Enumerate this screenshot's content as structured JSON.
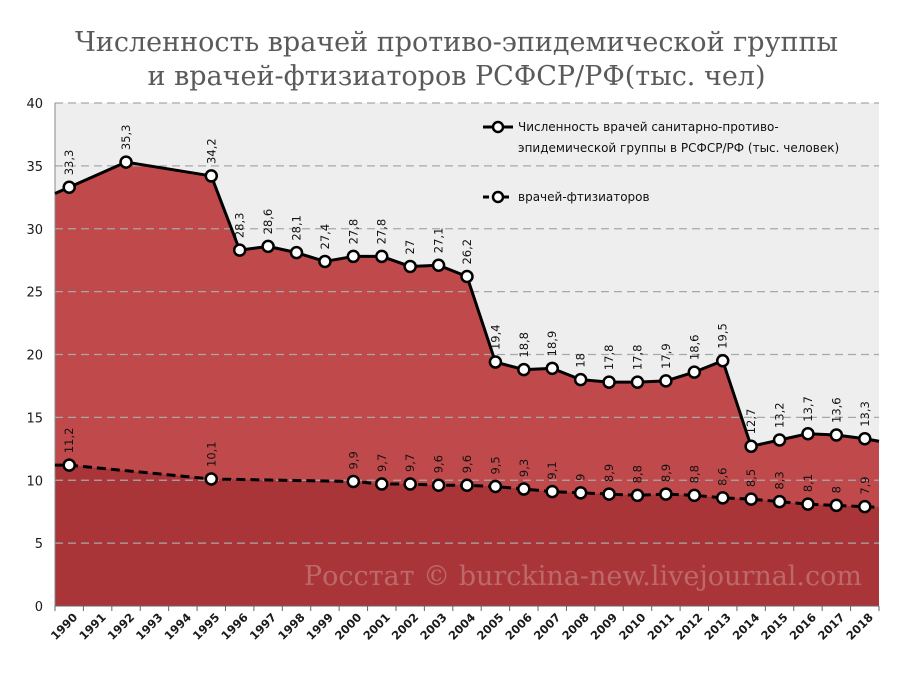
{
  "chart_data": {
    "type": "area",
    "title_lines": [
      "Численность врачей противо-эпидемической группы",
      "и врачей-фтизиаторов РСФСР/РФ(тыс. чел)"
    ],
    "categories": [
      "1990",
      "1991",
      "1992",
      "1993",
      "1994",
      "1995",
      "1996",
      "1997",
      "1998",
      "1999",
      "2000",
      "2001",
      "2002",
      "2003",
      "2004",
      "2005",
      "2006",
      "2007",
      "2008",
      "2009",
      "2010",
      "2011",
      "2012",
      "2013",
      "2014",
      "2015",
      "2016",
      "2017",
      "2018"
    ],
    "ylim": [
      0,
      40
    ],
    "yticks": [
      0,
      5,
      10,
      15,
      20,
      25,
      30,
      35,
      40
    ],
    "series": [
      {
        "name": "Численность врачей санитарно-противо-эпидемической группы в РСФСР/РФ (тыс. человек)",
        "legend_lines": [
          "Численность врачей санитарно-противо-",
          "эпидемической группы в РСФСР/РФ (тыс. человек)"
        ],
        "line_style": "solid",
        "fill": "#c0494b",
        "points": [
          {
            "x": 0.5,
            "value": 33.3,
            "label": "33,3"
          },
          {
            "x": 2.5,
            "value": 35.3,
            "label": "35,3"
          },
          {
            "x": 5.5,
            "value": 34.2,
            "label": "34,2"
          },
          {
            "x": 6.5,
            "value": 28.3,
            "label": "28,3"
          },
          {
            "x": 7.5,
            "value": 28.6,
            "label": "28,6"
          },
          {
            "x": 8.5,
            "value": 28.1,
            "label": "28,1"
          },
          {
            "x": 9.5,
            "value": 27.4,
            "label": "27,4"
          },
          {
            "x": 10.5,
            "value": 27.8,
            "label": "27,8"
          },
          {
            "x": 11.5,
            "value": 27.8,
            "label": "27,8"
          },
          {
            "x": 12.5,
            "value": 27.0,
            "label": "27"
          },
          {
            "x": 13.5,
            "value": 27.1,
            "label": "27,1"
          },
          {
            "x": 14.5,
            "value": 26.2,
            "label": "26,2"
          },
          {
            "x": 15.5,
            "value": 19.4,
            "label": "19,4"
          },
          {
            "x": 16.5,
            "value": 18.8,
            "label": "18,8"
          },
          {
            "x": 17.5,
            "value": 18.9,
            "label": "18,9"
          },
          {
            "x": 18.5,
            "value": 18.0,
            "label": "18"
          },
          {
            "x": 19.5,
            "value": 17.8,
            "label": "17,8"
          },
          {
            "x": 20.5,
            "value": 17.8,
            "label": "17,8"
          },
          {
            "x": 21.5,
            "value": 17.9,
            "label": "17,9"
          },
          {
            "x": 22.5,
            "value": 18.6,
            "label": "18,6"
          },
          {
            "x": 23.5,
            "value": 19.5,
            "label": "19,5"
          },
          {
            "x": 24.5,
            "value": 12.7,
            "label": "12,7"
          },
          {
            "x": 25.5,
            "value": 13.2,
            "label": "13,2"
          },
          {
            "x": 26.5,
            "value": 13.7,
            "label": "13,7"
          },
          {
            "x": 27.5,
            "value": 13.6,
            "label": "13,6"
          },
          {
            "x": 28.5,
            "value": 13.3,
            "label": "13,3"
          }
        ],
        "edge_start": 32.8,
        "edge_end": 13.1
      },
      {
        "name": "врачей-фтизиаторов",
        "legend_lines": [
          "врачей-фтизиаторов"
        ],
        "line_style": "dashed",
        "fill": "#a93538",
        "points": [
          {
            "x": 0.5,
            "value": 11.2,
            "label": "11,2"
          },
          {
            "x": 5.5,
            "value": 10.1,
            "label": "10,1"
          },
          {
            "x": 10.5,
            "value": 9.9,
            "label": "9,9"
          },
          {
            "x": 11.5,
            "value": 9.7,
            "label": "9,7"
          },
          {
            "x": 12.5,
            "value": 9.7,
            "label": "9,7"
          },
          {
            "x": 13.5,
            "value": 9.6,
            "label": "9,6"
          },
          {
            "x": 14.5,
            "value": 9.6,
            "label": "9,6"
          },
          {
            "x": 15.5,
            "value": 9.5,
            "label": "9,5"
          },
          {
            "x": 16.5,
            "value": 9.3,
            "label": "9,3"
          },
          {
            "x": 17.5,
            "value": 9.1,
            "label": "9,1"
          },
          {
            "x": 18.5,
            "value": 9.0,
            "label": "9"
          },
          {
            "x": 19.5,
            "value": 8.9,
            "label": "8,9"
          },
          {
            "x": 20.5,
            "value": 8.8,
            "label": "8,8"
          },
          {
            "x": 21.5,
            "value": 8.9,
            "label": "8,9"
          },
          {
            "x": 22.5,
            "value": 8.8,
            "label": "8,8"
          },
          {
            "x": 23.5,
            "value": 8.6,
            "label": "8,6"
          },
          {
            "x": 24.5,
            "value": 8.5,
            "label": "8,5"
          },
          {
            "x": 25.5,
            "value": 8.3,
            "label": "8,3"
          },
          {
            "x": 26.5,
            "value": 8.1,
            "label": "8,1"
          },
          {
            "x": 27.5,
            "value": 8.0,
            "label": "8"
          },
          {
            "x": 28.5,
            "value": 7.9,
            "label": "7,9"
          }
        ],
        "edge_start": 11.2,
        "edge_end": 7.85
      }
    ],
    "grid": true,
    "legend_position": "top-right",
    "watermark": "Росстат © burckina-new.livejournal.com",
    "colors": {
      "plot_bg": "#eeeeee",
      "area_main": "#c0494b",
      "area_phthisio": "#a93538",
      "line": "#000000",
      "marker_fill": "#ffffff",
      "grid": "#a8a8a8",
      "axis_text": "#1a1a1a",
      "watermark": "#c7807f"
    }
  }
}
